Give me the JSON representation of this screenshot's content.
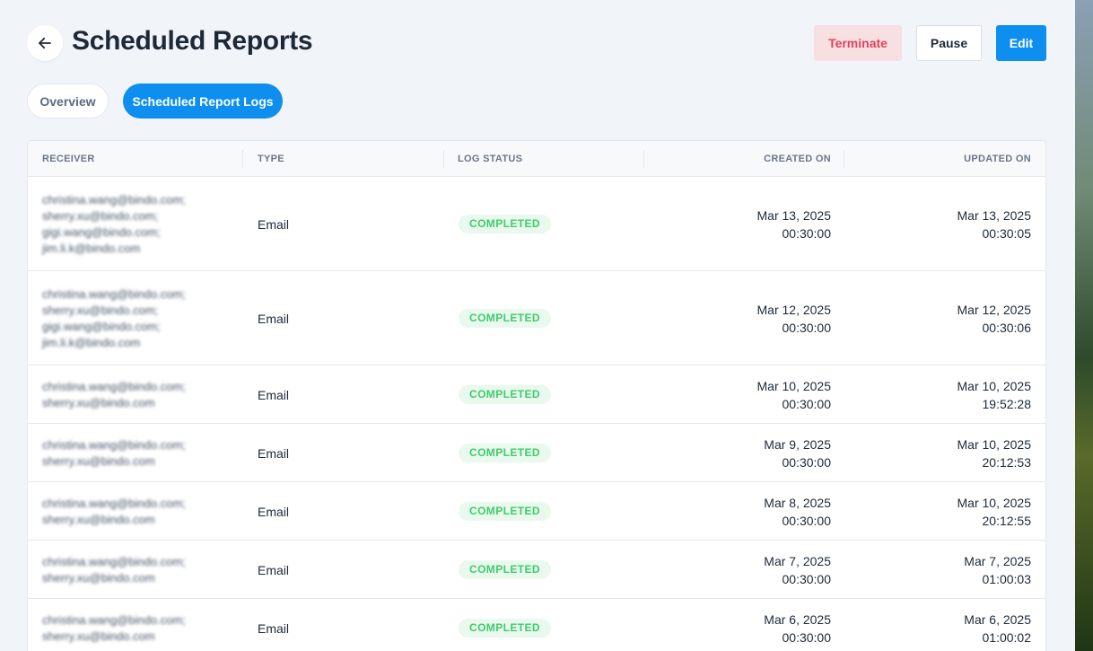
{
  "header": {
    "title": "Scheduled Reports",
    "actions": {
      "terminate": "Terminate",
      "pause": "Pause",
      "edit": "Edit"
    }
  },
  "tabs": [
    {
      "label": "Overview",
      "active": false
    },
    {
      "label": "Scheduled Report Logs",
      "active": true
    }
  ],
  "table": {
    "columns": {
      "receiver": "RECEIVER",
      "type": "TYPE",
      "status": "LOG STATUS",
      "created": "CREATED ON",
      "updated": "UPDATED ON"
    },
    "rows": [
      {
        "receivers": [
          "christina.wang@bindo.com;",
          "sherry.xu@bindo.com;",
          "gigi.wang@bindo.com;",
          "jim.li.k@bindo.com"
        ],
        "type": "Email",
        "status": "COMPLETED",
        "created_date": "Mar 13, 2025",
        "created_time": "00:30:00",
        "updated_date": "Mar 13, 2025",
        "updated_time": "00:30:05"
      },
      {
        "receivers": [
          "christina.wang@bindo.com;",
          "sherry.xu@bindo.com;",
          "gigi.wang@bindo.com;",
          "jim.li.k@bindo.com"
        ],
        "type": "Email",
        "status": "COMPLETED",
        "created_date": "Mar 12, 2025",
        "created_time": "00:30:00",
        "updated_date": "Mar 12, 2025",
        "updated_time": "00:30:06"
      },
      {
        "receivers": [
          "christina.wang@bindo.com;",
          "sherry.xu@bindo.com"
        ],
        "type": "Email",
        "status": "COMPLETED",
        "created_date": "Mar 10, 2025",
        "created_time": "00:30:00",
        "updated_date": "Mar 10, 2025",
        "updated_time": "19:52:28"
      },
      {
        "receivers": [
          "christina.wang@bindo.com;",
          "sherry.xu@bindo.com"
        ],
        "type": "Email",
        "status": "COMPLETED",
        "created_date": "Mar 9, 2025",
        "created_time": "00:30:00",
        "updated_date": "Mar 10, 2025",
        "updated_time": "20:12:53"
      },
      {
        "receivers": [
          "christina.wang@bindo.com;",
          "sherry.xu@bindo.com"
        ],
        "type": "Email",
        "status": "COMPLETED",
        "created_date": "Mar 8, 2025",
        "created_time": "00:30:00",
        "updated_date": "Mar 10, 2025",
        "updated_time": "20:12:55"
      },
      {
        "receivers": [
          "christina.wang@bindo.com;",
          "sherry.xu@bindo.com"
        ],
        "type": "Email",
        "status": "COMPLETED",
        "created_date": "Mar 7, 2025",
        "created_time": "00:30:00",
        "updated_date": "Mar 7, 2025",
        "updated_time": "01:00:03"
      },
      {
        "receivers": [
          "christina.wang@bindo.com;",
          "sherry.xu@bindo.com"
        ],
        "type": "Email",
        "status": "COMPLETED",
        "created_date": "Mar 6, 2025",
        "created_time": "00:30:00",
        "updated_date": "Mar 6, 2025",
        "updated_time": "01:00:02"
      }
    ]
  },
  "icons": {
    "back": "arrow-left-icon"
  },
  "colors": {
    "primary": "#0e8ff0",
    "danger": "#e0445e",
    "success": "#3fcc6a"
  }
}
